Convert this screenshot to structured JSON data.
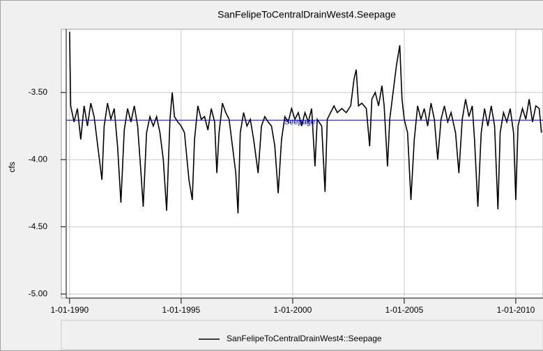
{
  "chart_data": {
    "type": "line",
    "title": "SanFelipeToCentralDrainWest4.Seepage",
    "y_label": "cfs",
    "xlim": [
      1989.63,
      2011.22
    ],
    "ylim": [
      -5.03,
      -3.03
    ],
    "xticks": [
      {
        "value": 1990,
        "label": "1-01-1990"
      },
      {
        "value": 1995,
        "label": "1-01-1995"
      },
      {
        "value": 2000,
        "label": "1-01-2000"
      },
      {
        "value": 2005,
        "label": "1-01-2005"
      },
      {
        "value": 2010,
        "label": "1-01-2010"
      }
    ],
    "yticks": [
      {
        "value": -3.5,
        "label": "-3.50"
      },
      {
        "value": -4.0,
        "label": "-4.00"
      },
      {
        "value": -4.5,
        "label": "-4.50"
      },
      {
        "value": -5.0,
        "label": "-5.00"
      }
    ],
    "grid": true,
    "reference_line": {
      "label": "Seepage",
      "value": -3.707,
      "color": "#0000ff"
    },
    "x": [
      1990.0,
      1990.05,
      1990.2,
      1990.35,
      1990.5,
      1990.65,
      1990.8,
      1990.95,
      1991.1,
      1991.3,
      1991.45,
      1991.55,
      1991.7,
      1991.85,
      1992.0,
      1992.15,
      1992.3,
      1992.45,
      1992.6,
      1992.75,
      1992.9,
      1993.05,
      1993.2,
      1993.3,
      1993.45,
      1993.6,
      1993.75,
      1993.9,
      1994.05,
      1994.2,
      1994.35,
      1994.5,
      1994.6,
      1994.7,
      1994.85,
      1995.0,
      1995.15,
      1995.35,
      1995.5,
      1995.6,
      1995.75,
      1995.9,
      1996.05,
      1996.2,
      1996.35,
      1996.5,
      1996.6,
      1996.7,
      1996.85,
      1997.0,
      1997.15,
      1997.3,
      1997.45,
      1997.55,
      1997.65,
      1997.8,
      1997.95,
      1998.1,
      1998.25,
      1998.45,
      1998.6,
      1998.75,
      1998.9,
      1999.05,
      1999.2,
      1999.35,
      1999.5,
      1999.65,
      1999.8,
      1999.95,
      2000.1,
      2000.25,
      2000.4,
      2000.55,
      2000.7,
      2000.85,
      2001.0,
      2001.1,
      2001.3,
      2001.45,
      2001.55,
      2001.7,
      2001.85,
      2002.0,
      2002.2,
      2002.4,
      2002.6,
      2002.75,
      2002.85,
      2002.95,
      2003.1,
      2003.3,
      2003.45,
      2003.55,
      2003.7,
      2003.85,
      2004.0,
      2004.1,
      2004.25,
      2004.35,
      2004.5,
      2004.65,
      2004.8,
      2004.9,
      2005.0,
      2005.15,
      2005.3,
      2005.45,
      2005.6,
      2005.75,
      2005.9,
      2006.05,
      2006.2,
      2006.35,
      2006.5,
      2006.65,
      2006.8,
      2006.95,
      2007.1,
      2007.3,
      2007.45,
      2007.6,
      2007.75,
      2007.9,
      2008.05,
      2008.15,
      2008.3,
      2008.45,
      2008.6,
      2008.75,
      2008.9,
      2009.05,
      2009.2,
      2009.3,
      2009.45,
      2009.6,
      2009.75,
      2009.9,
      2010.0,
      2010.1,
      2010.3,
      2010.45,
      2010.6,
      2010.75,
      2010.9,
      2011.05,
      2011.15
    ],
    "series": [
      {
        "name": "SanFelipeToCentralDrainWest4::Seepage",
        "color": "#000000",
        "values": [
          -3.05,
          -3.6,
          -3.72,
          -3.62,
          -3.85,
          -3.6,
          -3.75,
          -3.58,
          -3.68,
          -3.95,
          -4.15,
          -3.75,
          -3.58,
          -3.7,
          -3.62,
          -3.9,
          -4.32,
          -3.78,
          -3.62,
          -3.72,
          -3.6,
          -3.75,
          -4.1,
          -4.35,
          -3.8,
          -3.68,
          -3.75,
          -3.68,
          -3.8,
          -4.0,
          -4.38,
          -3.7,
          -3.5,
          -3.68,
          -3.72,
          -3.75,
          -3.8,
          -4.15,
          -4.3,
          -3.85,
          -3.6,
          -3.7,
          -3.68,
          -3.78,
          -3.62,
          -3.72,
          -4.1,
          -3.8,
          -3.58,
          -3.65,
          -3.7,
          -3.9,
          -4.1,
          -4.4,
          -3.8,
          -3.65,
          -3.75,
          -3.7,
          -3.85,
          -4.1,
          -3.75,
          -3.68,
          -3.72,
          -3.75,
          -3.9,
          -4.25,
          -3.85,
          -3.68,
          -3.72,
          -3.62,
          -3.7,
          -3.65,
          -3.75,
          -3.65,
          -3.72,
          -3.62,
          -4.05,
          -3.7,
          -3.75,
          -4.24,
          -3.7,
          -3.65,
          -3.6,
          -3.65,
          -3.62,
          -3.65,
          -3.6,
          -3.4,
          -3.33,
          -3.6,
          -3.58,
          -3.62,
          -3.9,
          -3.55,
          -3.5,
          -3.6,
          -3.45,
          -3.6,
          -4.05,
          -3.7,
          -3.5,
          -3.3,
          -3.15,
          -3.55,
          -3.7,
          -3.8,
          -4.3,
          -3.85,
          -3.6,
          -3.7,
          -3.62,
          -3.75,
          -3.58,
          -3.7,
          -4.0,
          -3.7,
          -3.6,
          -3.72,
          -3.65,
          -3.8,
          -4.1,
          -3.7,
          -3.55,
          -3.68,
          -3.6,
          -3.85,
          -4.35,
          -3.8,
          -3.62,
          -3.75,
          -3.6,
          -3.75,
          -4.37,
          -3.8,
          -3.65,
          -3.72,
          -3.62,
          -3.8,
          -4.3,
          -3.75,
          -3.62,
          -3.7,
          -3.55,
          -3.72,
          -3.6,
          -3.62,
          -3.8
        ]
      }
    ]
  }
}
